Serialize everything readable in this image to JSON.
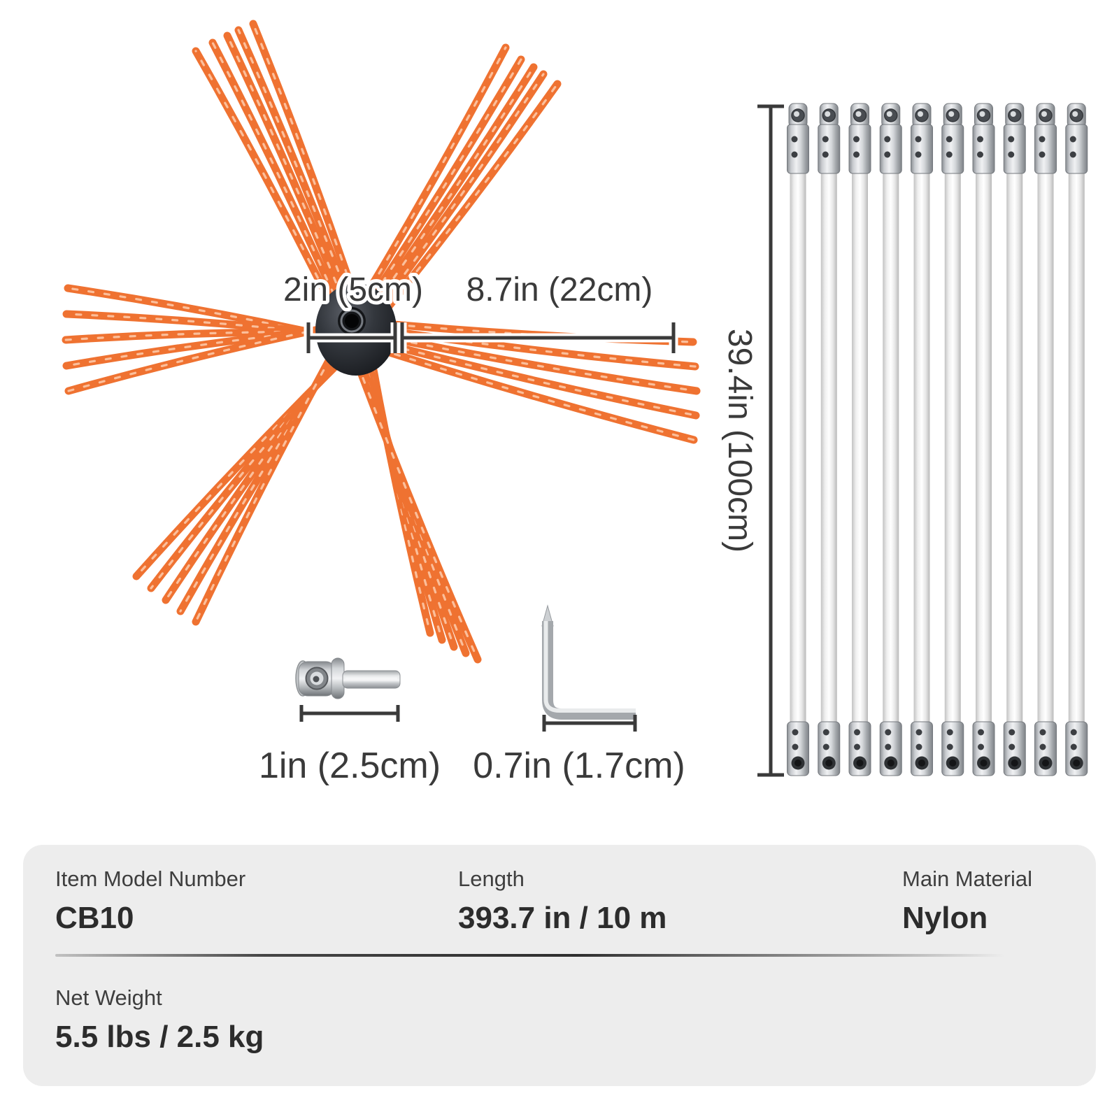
{
  "diagram": {
    "dim_color": "#3a3a3a",
    "brush": {
      "hub_dim_label": "2in (5cm)",
      "bristle_dim_label": "8.7in (22cm)",
      "bristle_color": "#ef7231",
      "bristle_highlight_color": "#ffd9bf",
      "hub_color_dark": "#17191d"
    },
    "rods": {
      "count": 10,
      "length_dim_label": "39.4in (100cm)"
    },
    "adapter": {
      "dim_label": "1in (2.5cm)"
    },
    "hex_key": {
      "dim_label": "0.7in (1.7cm)"
    }
  },
  "spec_table": {
    "panel_color": "#ededed",
    "rows": [
      {
        "cells": [
          {
            "label": "Item Model Number",
            "value": "CB10"
          },
          {
            "label": "Length",
            "value": "393.7 in / 10 m"
          },
          {
            "label": "Main Material",
            "value": "Nylon"
          }
        ]
      },
      {
        "cells": [
          {
            "label": "Net Weight",
            "value": "5.5 lbs / 2.5 kg"
          }
        ]
      }
    ]
  }
}
